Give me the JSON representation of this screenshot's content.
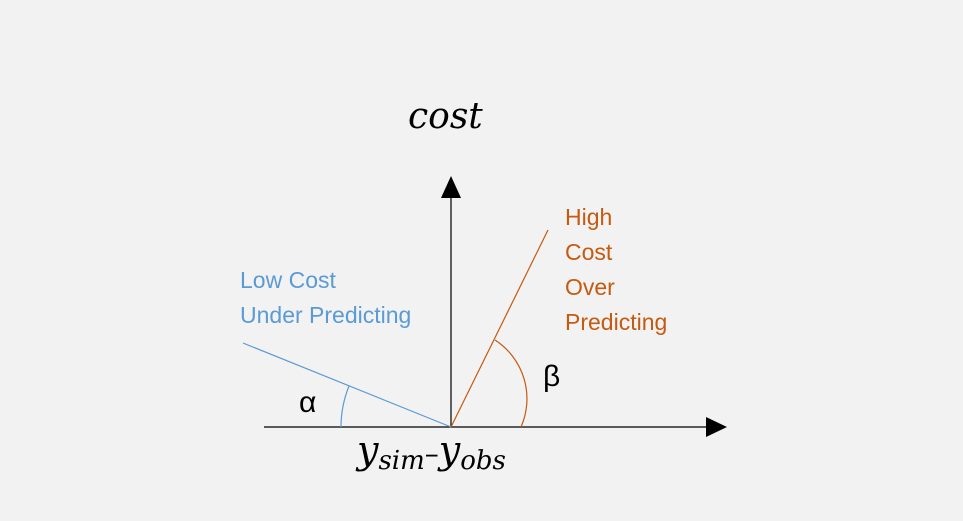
{
  "diagram": {
    "y_axis_label": "cost",
    "x_axis_label": {
      "y1": "y",
      "sub1": "sim",
      "minus": "–",
      "y2": "y",
      "sub2": "obs"
    },
    "low_cost": {
      "line1": "Low Cost",
      "line2": "Under Predicting"
    },
    "high_cost": {
      "line1": "High",
      "line2": "Cost",
      "line3": "Over",
      "line4": "Predicting"
    },
    "angle_alpha": "α",
    "angle_beta": "β",
    "colors": {
      "background": "#f2f2f2",
      "axis": "#000000",
      "low_cost": "#5b9bd5",
      "high_cost": "#c55a11"
    }
  }
}
